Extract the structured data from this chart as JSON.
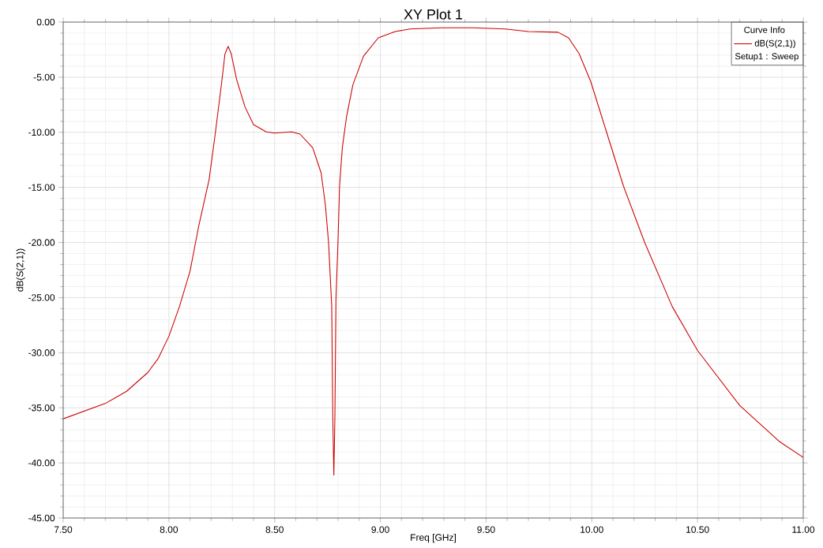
{
  "chart_data": {
    "type": "line",
    "title": "XY Plot 1",
    "xlabel": "Freq [GHz]",
    "ylabel": "dB(S(2,1))",
    "legend_title": "Curve Info",
    "annotations": [
      "Setup1 : Sweep"
    ],
    "xlim": [
      7.5,
      11.0
    ],
    "ylim": [
      -45,
      0
    ],
    "xticks": [
      {
        "value": 7.5,
        "label": "7.50"
      },
      {
        "value": 8.0,
        "label": "8.00"
      },
      {
        "value": 8.5,
        "label": "8.50"
      },
      {
        "value": 9.0,
        "label": "9.00"
      },
      {
        "value": 9.5,
        "label": "9.50"
      },
      {
        "value": 10.0,
        "label": "10.00"
      },
      {
        "value": 10.5,
        "label": "10.50"
      },
      {
        "value": 11.0,
        "label": "11.00"
      }
    ],
    "yticks": [
      {
        "value": -45,
        "label": "-45.00"
      },
      {
        "value": -40,
        "label": "-40.00"
      },
      {
        "value": -35,
        "label": "-35.00"
      },
      {
        "value": -30,
        "label": "-30.00"
      },
      {
        "value": -25,
        "label": "-25.00"
      },
      {
        "value": -20,
        "label": "-20.00"
      },
      {
        "value": -15,
        "label": "-15.00"
      },
      {
        "value": -10,
        "label": "-10.00"
      },
      {
        "value": -5,
        "label": "-5.00"
      },
      {
        "value": 0,
        "label": "0.00"
      }
    ],
    "grid": true,
    "legend": "top right",
    "marker": "none",
    "line_style": "solid",
    "series": [
      {
        "name": "dB(S(2,1))",
        "color": "#cc0000",
        "x": [
          7.5,
          7.7,
          7.8,
          7.9,
          7.95,
          8.0,
          8.05,
          8.1,
          8.14,
          8.19,
          8.22,
          8.25,
          8.265,
          8.28,
          8.295,
          8.32,
          8.36,
          8.4,
          8.46,
          8.5,
          8.58,
          8.62,
          8.68,
          8.72,
          8.74,
          8.755,
          8.77,
          8.775,
          8.78,
          8.785,
          8.79,
          8.8,
          8.807,
          8.82,
          8.84,
          8.87,
          8.92,
          8.99,
          9.07,
          9.14,
          9.29,
          9.44,
          9.59,
          9.7,
          9.84,
          9.89,
          9.94,
          9.995,
          10.07,
          10.15,
          10.25,
          10.38,
          10.5,
          10.7,
          10.89,
          11.0
        ],
        "values": [
          -36.0,
          -34.6,
          -33.5,
          -31.8,
          -30.5,
          -28.5,
          -25.8,
          -22.6,
          -18.6,
          -14.3,
          -10.0,
          -5.4,
          -2.9,
          -2.2,
          -2.9,
          -5.2,
          -7.7,
          -9.3,
          -9.96,
          -10.07,
          -9.96,
          -10.16,
          -11.4,
          -13.7,
          -16.6,
          -20.0,
          -25.8,
          -35.8,
          -41.1,
          -35.8,
          -25.2,
          -19.7,
          -14.9,
          -11.4,
          -8.6,
          -5.7,
          -3.1,
          -1.43,
          -0.86,
          -0.63,
          -0.52,
          -0.52,
          -0.63,
          -0.86,
          -0.92,
          -1.43,
          -2.86,
          -5.4,
          -10.0,
          -14.9,
          -20.0,
          -25.8,
          -29.8,
          -34.8,
          -38.1,
          -39.5
        ]
      }
    ]
  }
}
